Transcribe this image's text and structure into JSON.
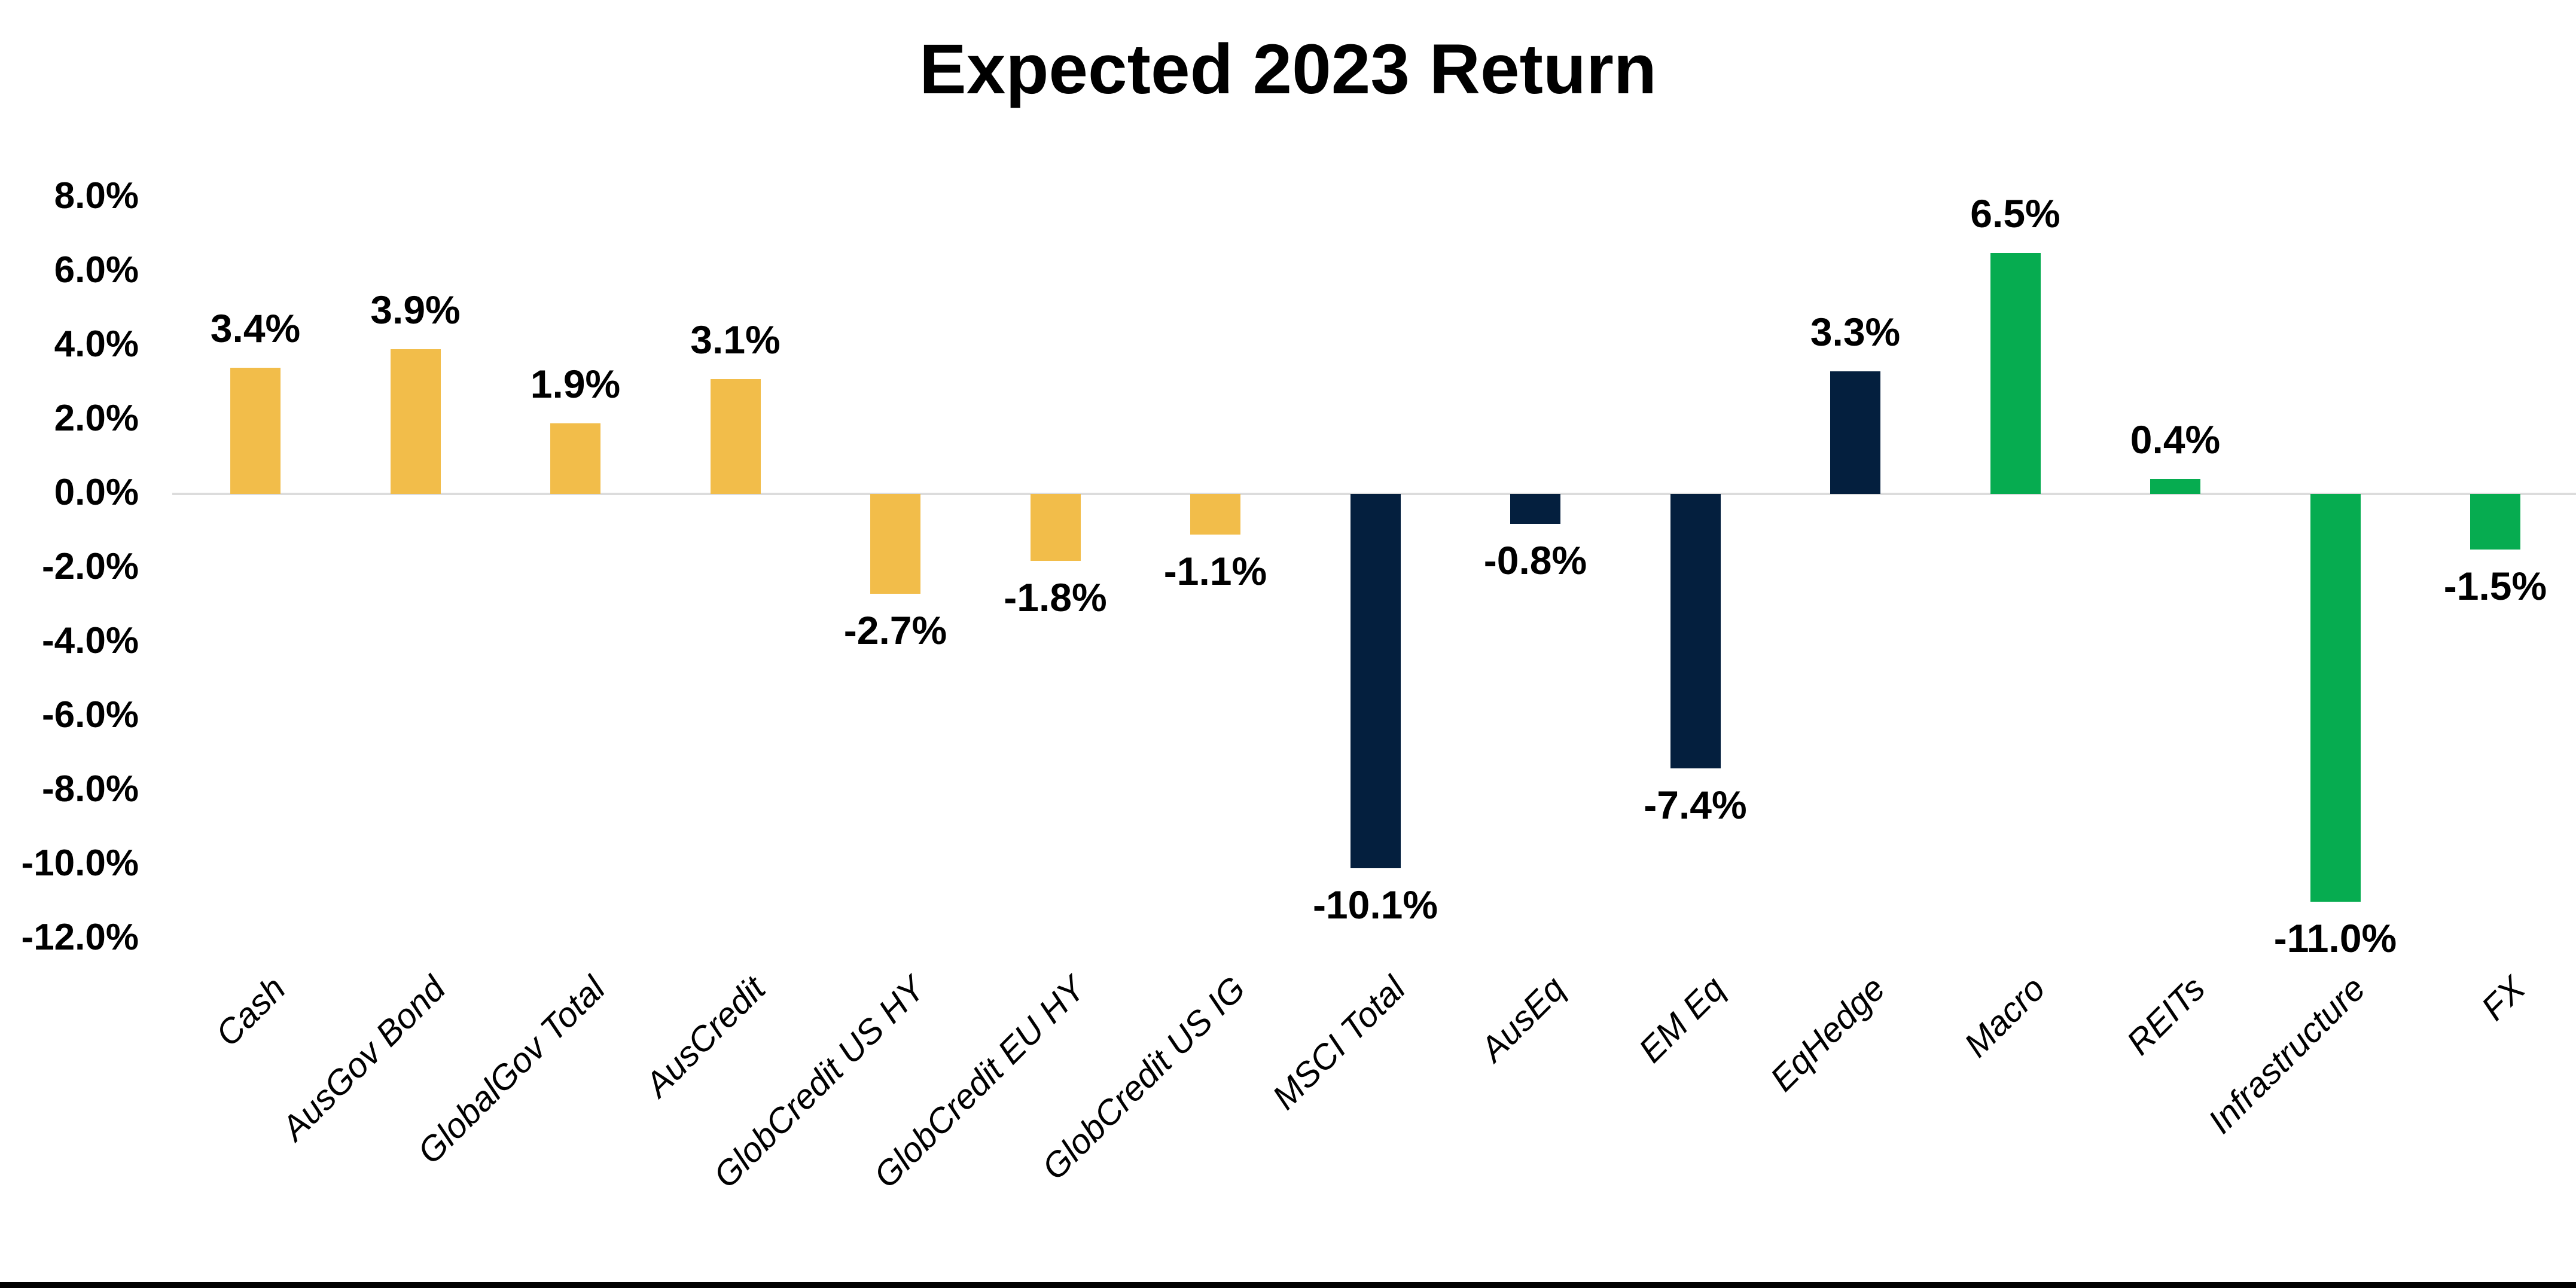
{
  "chart_data": {
    "type": "bar",
    "title": "Expected 2023 Return",
    "categories": [
      "Cash",
      "AusGov Bond",
      "GlobalGov Total",
      "AusCredit",
      "GlobCredit US HY",
      "GlobCredit EU HY",
      "GlobCredit US IG",
      "MSCI Total",
      "AusEq",
      "EM Eq",
      "EqHedge",
      "Macro",
      "REITs",
      "Infrastructure",
      "FX"
    ],
    "values": [
      3.4,
      3.9,
      1.9,
      3.1,
      -2.7,
      -1.8,
      -1.1,
      -10.1,
      -0.8,
      -7.4,
      3.3,
      6.5,
      0.4,
      -11.0,
      -1.5
    ],
    "value_labels": [
      "3.4%",
      "3.9%",
      "1.9%",
      "3.1%",
      "-2.7%",
      "-1.8%",
      "-1.1%",
      "-10.1%",
      "-0.8%",
      "-7.4%",
      "3.3%",
      "6.5%",
      "0.4%",
      "-11.0%",
      "-1.5%"
    ],
    "bar_colors": [
      "#F2BD4A",
      "#F2BD4A",
      "#F2BD4A",
      "#F2BD4A",
      "#F2BD4A",
      "#F2BD4A",
      "#F2BD4A",
      "#041F3E",
      "#041F3E",
      "#041F3E",
      "#041F3E",
      "#06AC50",
      "#06AC50",
      "#06AC50",
      "#06AC50"
    ],
    "palette": {
      "yellow": "#F2BD4A",
      "navy": "#041F3E",
      "green": "#06AC50"
    },
    "y_ticks": [
      {
        "value": 8.0,
        "label": "8.0%"
      },
      {
        "value": 6.0,
        "label": "6.0%"
      },
      {
        "value": 4.0,
        "label": "4.0%"
      },
      {
        "value": 2.0,
        "label": "2.0%"
      },
      {
        "value": 0.0,
        "label": "0.0%"
      },
      {
        "value": -2.0,
        "label": "-2.0%"
      },
      {
        "value": -4.0,
        "label": "-4.0%"
      },
      {
        "value": -6.0,
        "label": "-6.0%"
      },
      {
        "value": -8.0,
        "label": "-8.0%"
      },
      {
        "value": -10.0,
        "label": "-10.0%"
      },
      {
        "value": -12.0,
        "label": "-12.0%"
      }
    ],
    "ylim": [
      -12.0,
      8.0
    ],
    "xlabel": "",
    "ylabel": "",
    "grid": false,
    "legend": "none",
    "zero_line_color": "#DCDCDC",
    "background_color": "#FFFFFF",
    "bottom_border_color": "#000000"
  }
}
